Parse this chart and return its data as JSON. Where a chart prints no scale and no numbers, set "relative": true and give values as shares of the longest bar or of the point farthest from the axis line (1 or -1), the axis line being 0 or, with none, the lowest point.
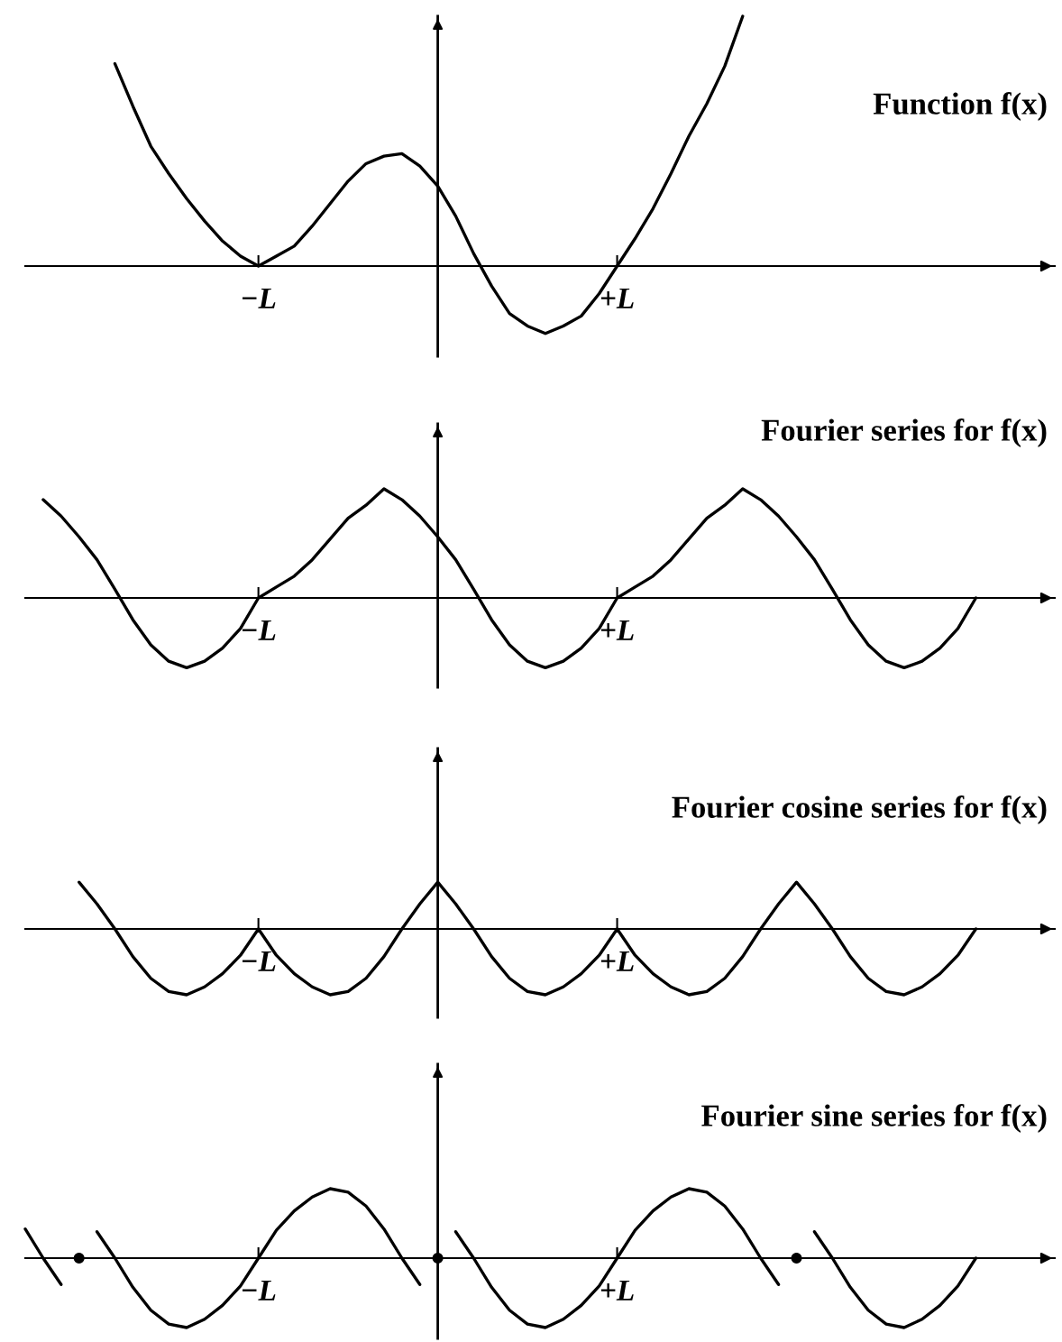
{
  "chart_data": [
    {
      "type": "line",
      "title": "Function f(x)",
      "relative": true,
      "categories": [
        null,
        null,
        null,
        null,
        null,
        null,
        null,
        null,
        null,
        null,
        null,
        null,
        null,
        "−L",
        null,
        null,
        null,
        null,
        null,
        null,
        null,
        null,
        null,
        null,
        null,
        null,
        null,
        null,
        null,
        null,
        null,
        null,
        null,
        "+L",
        null,
        null,
        null,
        null,
        null,
        null,
        null,
        null,
        null,
        null,
        null,
        null,
        null,
        null,
        null,
        null,
        null,
        null,
        null,
        null,
        null,
        null,
        null,
        null
      ],
      "series": [
        {
          "color": "#000000",
          "values": [
            null,
            null,
            null,
            null,
            null,
            0.81,
            0.64,
            0.48,
            0.37,
            0.27,
            0.18,
            0.1,
            0.04,
            0,
            0.04,
            0.08,
            0.16,
            0.25,
            0.34,
            0.41,
            0.44,
            0.45,
            0.4,
            0.32,
            0.2,
            0.05,
            -0.08,
            -0.19,
            -0.24,
            -0.27,
            -0.24,
            -0.2,
            -0.11,
            0,
            0.11,
            0.23,
            0.37,
            0.52,
            0.65,
            0.8,
            1.0,
            null,
            null,
            null,
            null,
            null,
            null,
            null,
            null,
            null,
            null,
            null,
            null,
            null,
            null,
            null,
            null,
            null
          ]
        }
      ]
    },
    {
      "type": "line",
      "title": "Fourier series for f(x)",
      "relative": true,
      "categories": [
        null,
        null,
        null,
        null,
        null,
        null,
        null,
        null,
        null,
        null,
        null,
        null,
        null,
        "−L",
        null,
        null,
        null,
        null,
        null,
        null,
        null,
        null,
        null,
        null,
        null,
        null,
        null,
        null,
        null,
        null,
        null,
        null,
        null,
        "+L",
        null,
        null,
        null,
        null,
        null,
        null,
        null,
        null,
        null,
        null,
        null,
        null,
        null,
        null,
        null,
        null,
        null,
        null,
        null,
        null,
        null,
        null,
        null,
        null
      ],
      "series": [
        {
          "color": "#000000",
          "values": [
            null,
            0.9,
            0.75,
            0.56,
            0.35,
            0.08,
            -0.2,
            -0.43,
            -0.58,
            -0.64,
            -0.58,
            -0.46,
            -0.28,
            0,
            0.1,
            0.2,
            0.35,
            0.54,
            0.73,
            0.85,
            1.0,
            0.9,
            0.75,
            0.56,
            0.35,
            0.08,
            -0.2,
            -0.43,
            -0.58,
            -0.64,
            -0.58,
            -0.46,
            -0.28,
            0,
            0.1,
            0.2,
            0.35,
            0.54,
            0.73,
            0.85,
            1.0,
            0.9,
            0.75,
            0.56,
            0.35,
            0.08,
            -0.2,
            -0.43,
            -0.58,
            -0.64,
            -0.58,
            -0.46,
            -0.28,
            0,
            null,
            null,
            null,
            null
          ]
        }
      ]
    },
    {
      "type": "line",
      "title": "Fourier cosine series for f(x)",
      "relative": true,
      "categories": [
        null,
        null,
        null,
        null,
        null,
        null,
        null,
        null,
        null,
        null,
        null,
        null,
        null,
        "−L",
        null,
        null,
        null,
        null,
        null,
        null,
        null,
        null,
        null,
        null,
        null,
        null,
        null,
        null,
        null,
        null,
        null,
        null,
        null,
        "+L",
        null,
        null,
        null,
        null,
        null,
        null,
        null,
        null,
        null,
        null,
        null,
        null,
        null,
        null,
        null,
        null,
        null,
        null,
        null,
        null,
        null,
        null,
        null,
        null
      ],
      "series": [
        {
          "color": "#000000",
          "values": [
            null,
            null,
            null,
            0.71,
            0.38,
            0,
            -0.42,
            -0.75,
            -0.95,
            -1,
            -0.88,
            -0.68,
            -0.4,
            0,
            -0.4,
            -0.68,
            -0.88,
            -1,
            -0.95,
            -0.75,
            -0.42,
            0,
            0.38,
            0.71,
            0.38,
            0,
            -0.42,
            -0.75,
            -0.95,
            -1,
            -0.88,
            -0.68,
            -0.4,
            0,
            -0.4,
            -0.68,
            -0.88,
            -1,
            -0.95,
            -0.75,
            -0.42,
            0,
            0.38,
            0.71,
            0.38,
            0,
            -0.42,
            -0.75,
            -0.95,
            -1,
            -0.88,
            -0.68,
            -0.4,
            0,
            null,
            null,
            null,
            null
          ]
        }
      ]
    },
    {
      "type": "line",
      "title": "Fourier sine series for f(x)",
      "relative": true,
      "categories": [
        null,
        null,
        null,
        null,
        null,
        null,
        null,
        null,
        null,
        null,
        null,
        null,
        null,
        "−L",
        null,
        null,
        null,
        null,
        null,
        null,
        null,
        null,
        null,
        null,
        null,
        null,
        null,
        null,
        null,
        null,
        null,
        null,
        null,
        "+L",
        null,
        null,
        null,
        null,
        null,
        null,
        null,
        null,
        null,
        null,
        null,
        null,
        null,
        null,
        null,
        null,
        null,
        null,
        null,
        null,
        null,
        null,
        null,
        null
      ],
      "series": [
        {
          "color": "#000000",
          "values": [
            0.42,
            0,
            -0.38,
            null,
            0.38,
            0,
            -0.42,
            -0.75,
            -0.95,
            -1,
            -0.88,
            -0.68,
            -0.4,
            0,
            0.4,
            0.68,
            0.88,
            1,
            0.95,
            0.75,
            0.42,
            0,
            -0.38,
            null,
            0.38,
            0,
            -0.42,
            -0.75,
            -0.95,
            -1,
            -0.88,
            -0.68,
            -0.4,
            0,
            0.4,
            0.68,
            0.88,
            1,
            0.95,
            0.75,
            0.42,
            0,
            -0.38,
            null,
            0.38,
            0,
            -0.42,
            -0.75,
            -0.95,
            -1,
            -0.88,
            -0.68,
            -0.4,
            0,
            null,
            null,
            null,
            null
          ]
        },
        {
          "type": "scatter",
          "marker": "circle",
          "color": "#000000",
          "values": [
            null,
            null,
            null,
            0,
            null,
            null,
            null,
            null,
            null,
            null,
            null,
            null,
            null,
            null,
            null,
            null,
            null,
            null,
            null,
            null,
            null,
            null,
            null,
            0,
            null,
            null,
            null,
            null,
            null,
            null,
            null,
            null,
            null,
            null,
            null,
            null,
            null,
            null,
            null,
            null,
            null,
            null,
            null,
            0,
            null,
            null,
            null,
            null,
            null,
            null,
            null,
            null,
            null,
            null,
            null,
            null,
            null,
            null
          ]
        }
      ]
    }
  ]
}
